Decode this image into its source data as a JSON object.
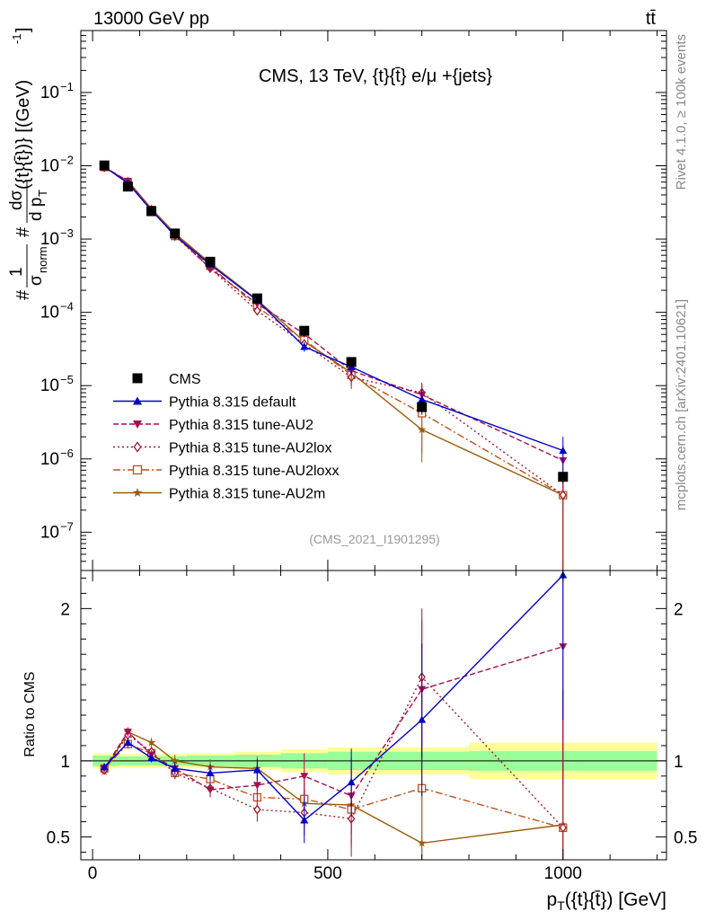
{
  "header": {
    "energy": "13000 GeV pp",
    "process": "tt̄",
    "side_rivet": "Rivet 4.1.0, ≥ 100k events",
    "side_site": "mcplots.cern.ch [arXiv:2401.10621]"
  },
  "chart_data": [
    {
      "type": "line",
      "panel": "main",
      "title": "CMS, 13 TeV, {t}{t̄} e/μ +{jets}",
      "analysis_label": "(CMS_2021_I1901295)",
      "ylabel": "#1/σ_norm #dσ/d p_T({t}{t̄}) [(GeV)^-1]",
      "yscale": "log",
      "ylim": [
        3e-08,
        0.7
      ],
      "yticks": [
        "10^{-7}",
        "10^{-6}",
        "10^{-5}",
        "10^{-4}",
        "10^{-3}",
        "10^{-2}",
        "10^{-1}"
      ],
      "xlim": [
        -25,
        1220
      ],
      "legend_position": "middle-left",
      "x": [
        25,
        75,
        125,
        175,
        250,
        350,
        450,
        550,
        700,
        1000
      ],
      "series": [
        {
          "name": "CMS",
          "color": "#000000",
          "marker": "square",
          "dash": "none",
          "values": [
            0.0101,
            0.0052,
            0.0024,
            0.00119,
            0.00049,
            0.000155,
            5.6e-05,
            2.1e-05,
            5.1e-06,
            5.7e-07
          ],
          "err": [
            0.0005,
            0.0003,
            0.00012,
            6e-05,
            3e-05,
            1e-05,
            4e-06,
            1.5e-06,
            8e-07,
            1e-07
          ]
        },
        {
          "name": "Pythia 8.315 default",
          "color": "#0000cc",
          "marker": "triangle-up",
          "dash": "none",
          "values": [
            0.0097,
            0.0058,
            0.00245,
            0.00113,
            0.00045,
            0.000145,
            3.4e-05,
            1.8e-05,
            6.5e-06,
            1.3e-06
          ],
          "err": [
            0.0002,
            0.0002,
            0.0001,
            5e-05,
            2e-05,
            8e-06,
            5e-06,
            4e-06,
            2.5e-06,
            7e-07
          ]
        },
        {
          "name": "Pythia 8.315 tune-AU2",
          "color": "#a50f50",
          "marker": "triangle-down",
          "dash": "6,3",
          "values": [
            0.0096,
            0.0062,
            0.0025,
            0.00113,
            0.0004,
            0.00013,
            5.1e-05,
            1.6e-05,
            7.5e-06,
            9.5e-07
          ],
          "err": [
            0.0002,
            0.0002,
            0.0001,
            5e-05,
            2e-05,
            1e-05,
            6e-06,
            4e-06,
            3e-06,
            6e-07
          ]
        },
        {
          "name": "Pythia 8.315 tune-AU2lox",
          "color": "#a01a2a",
          "marker": "diamond-open",
          "dash": "2,3",
          "values": [
            0.0095,
            0.006,
            0.0025,
            0.0011,
            0.0004,
            0.000105,
            3.7e-05,
            1.3e-05,
            8e-06,
            3.2e-07
          ],
          "err": [
            0.0002,
            0.0002,
            0.0001,
            5e-05,
            2e-05,
            1e-05,
            6e-06,
            4e-06,
            3e-06,
            3e-07
          ]
        },
        {
          "name": "Pythia 8.315 tune-AU2loxx",
          "color": "#c0501e",
          "marker": "square-open",
          "dash": "8,3,2,3",
          "values": [
            0.0096,
            0.0058,
            0.0025,
            0.0011,
            0.00043,
            0.000118,
            4.2e-05,
            1.4e-05,
            4.2e-06,
            3.2e-07
          ],
          "err": [
            0.0002,
            0.0002,
            0.0001,
            5e-05,
            2e-05,
            1e-05,
            6e-06,
            4e-06,
            3e-06,
            3e-07
          ]
        },
        {
          "name": "Pythia 8.315 tune-AU2m",
          "color": "#9a5a0a",
          "marker": "star",
          "dash": "none",
          "values": [
            0.0094,
            0.0062,
            0.0026,
            0.0012,
            0.00047,
            0.000148,
            4e-05,
            1.5e-05,
            2.5e-06,
            3.2e-07
          ],
          "err": [
            0.0002,
            0.0002,
            0.0001,
            5e-05,
            2e-05,
            1e-05,
            6e-06,
            4e-06,
            1.6e-06,
            3e-07
          ]
        }
      ]
    },
    {
      "type": "line",
      "panel": "ratio",
      "ylabel": "Ratio to CMS",
      "xlabel": "p_T({t}{t̄}) [GeV]",
      "xlim": [
        -25,
        1220
      ],
      "ylim": [
        0.35,
        2.25
      ],
      "yticks": [
        0.5,
        1,
        2
      ],
      "xticks": [
        0,
        500,
        1000
      ],
      "reference_line": 1,
      "bands": {
        "edges": [
          0,
          50,
          100,
          150,
          200,
          300,
          400,
          500,
          600,
          800,
          1200
        ],
        "inner": [
          0.035,
          0.03,
          0.03,
          0.03,
          0.035,
          0.04,
          0.05,
          0.06,
          0.06,
          0.065
        ],
        "outer": [
          0.05,
          0.045,
          0.045,
          0.045,
          0.05,
          0.06,
          0.075,
          0.09,
          0.09,
          0.12
        ],
        "inner_color": "#99ff99",
        "outer_color": "#ffff99"
      },
      "x": [
        25,
        75,
        125,
        175,
        250,
        350,
        450,
        550,
        700,
        1000
      ],
      "series": [
        {
          "name": "Pythia 8.315 default",
          "color": "#0000cc",
          "marker": "triangle-up",
          "dash": "none",
          "values": [
            0.96,
            1.12,
            1.02,
            0.95,
            0.92,
            0.94,
            0.61,
            0.86,
            1.27,
            2.22
          ],
          "err": [
            0.02,
            0.03,
            0.03,
            0.04,
            0.05,
            0.07,
            0.15,
            0.22,
            0.5,
            0.95
          ]
        },
        {
          "name": "Pythia 8.315 tune-AU2",
          "color": "#a50f50",
          "marker": "triangle-down",
          "dash": "6,3",
          "values": [
            0.95,
            1.19,
            1.04,
            0.95,
            0.81,
            0.84,
            0.9,
            0.77,
            1.47,
            1.75
          ],
          "err": [
            0.02,
            0.03,
            0.03,
            0.04,
            0.05,
            0.08,
            0.15,
            0.25,
            0.45,
            0.9
          ]
        },
        {
          "name": "Pythia 8.315 tune-AU2lox",
          "color": "#a01a2a",
          "marker": "diamond-open",
          "dash": "2,3",
          "values": [
            0.94,
            1.17,
            1.06,
            0.92,
            0.82,
            0.68,
            0.66,
            0.62,
            1.55,
            0.56
          ],
          "err": [
            0.02,
            0.03,
            0.03,
            0.04,
            0.05,
            0.08,
            0.15,
            0.25,
            0.45,
            0.9
          ]
        },
        {
          "name": "Pythia 8.315 tune-AU2loxx",
          "color": "#c0501e",
          "marker": "square-open",
          "dash": "8,3,2,3",
          "values": [
            0.95,
            1.11,
            1.05,
            0.92,
            0.88,
            0.76,
            0.75,
            0.68,
            0.82,
            0.56
          ],
          "err": [
            0.02,
            0.03,
            0.03,
            0.04,
            0.05,
            0.08,
            0.15,
            0.25,
            0.45,
            0.9
          ]
        },
        {
          "name": "Pythia 8.315 tune-AU2m",
          "color": "#9a5a0a",
          "marker": "star",
          "dash": "none",
          "values": [
            0.93,
            1.19,
            1.12,
            1.0,
            0.96,
            0.95,
            0.72,
            0.71,
            0.46,
            0.58
          ],
          "err": [
            0.02,
            0.03,
            0.03,
            0.04,
            0.05,
            0.08,
            0.15,
            0.25,
            0.4,
            0.9
          ]
        }
      ]
    }
  ]
}
